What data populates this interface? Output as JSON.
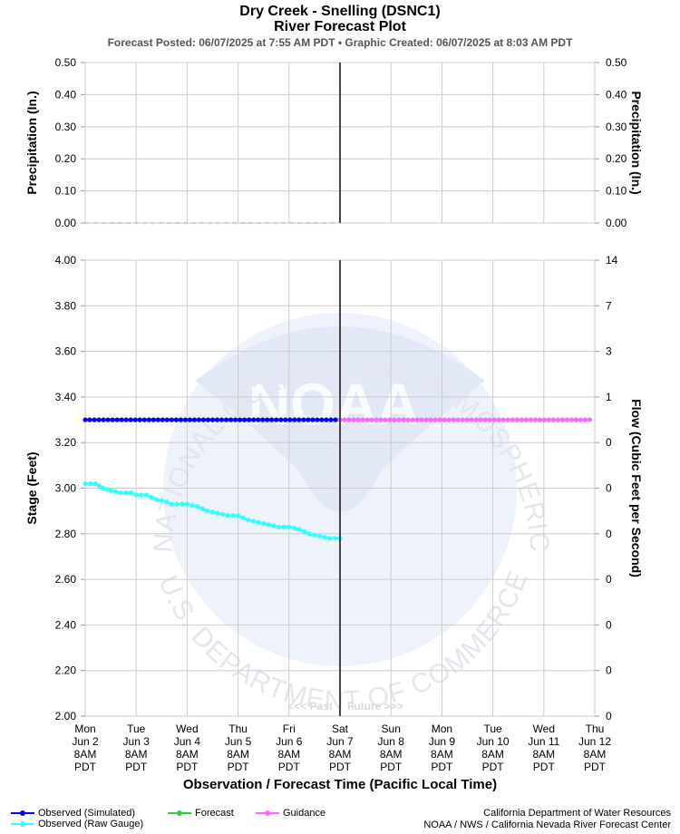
{
  "header": {
    "title_line1": "Dry Creek - Snelling (DSNC1)",
    "title_line2": "River Forecast Plot",
    "subtitle": "Forecast Posted: 06/07/2025 at 7:55 AM PDT  •  Graphic Created: 06/07/2025 at 8:03 AM PDT"
  },
  "chart_data": [
    {
      "type": "line",
      "ylabel_left": "Precipitation (In.)",
      "ylabel_right": "Precipitation (In.)",
      "ylim": [
        0,
        0.5
      ],
      "yticks_left": [
        "0.50",
        "0.40",
        "0.30",
        "0.20",
        "0.10",
        "0.00"
      ],
      "yticks_right": [
        "0.50",
        "0.40",
        "0.30",
        "0.20",
        "0.10",
        "0.00"
      ],
      "series": [
        {
          "values": [
            0,
            0
          ]
        }
      ],
      "grid": true
    },
    {
      "type": "line",
      "ylabel_left": "Stage (Feet)",
      "ylabel_right": "Flow (Cubic Feet per Second)",
      "ylim": [
        2.0,
        4.0
      ],
      "yticks_left": [
        "4.00",
        "3.80",
        "3.60",
        "3.40",
        "3.20",
        "3.00",
        "2.80",
        "2.60",
        "2.40",
        "2.20",
        "2.00"
      ],
      "yticks_right": [
        "14",
        "7",
        "3",
        "1",
        "0",
        "0",
        "0",
        "0",
        "0",
        "0",
        "0"
      ],
      "xlabel": "Observation / Forecast Time (Pacific Local Time)",
      "x_ticks": [
        [
          "Mon",
          "Jun 2",
          "8AM",
          "PDT"
        ],
        [
          "Tue",
          "Jun 3",
          "8AM",
          "PDT"
        ],
        [
          "Wed",
          "Jun 4",
          "8AM",
          "PDT"
        ],
        [
          "Thu",
          "Jun 5",
          "8AM",
          "PDT"
        ],
        [
          "Fri",
          "Jun 6",
          "8AM",
          "PDT"
        ],
        [
          "Sat",
          "Jun 7",
          "8AM",
          "PDT"
        ],
        [
          "Sun",
          "Jun 8",
          "8AM",
          "PDT"
        ],
        [
          "Mon",
          "Jun 9",
          "8AM",
          "PDT"
        ],
        [
          "Tue",
          "Jun 10",
          "8AM",
          "PDT"
        ],
        [
          "Wed",
          "Jun 11",
          "8AM",
          "PDT"
        ],
        [
          "Thu",
          "Jun 12",
          "8AM",
          "PDT"
        ]
      ],
      "xlim_days": [
        0,
        10
      ],
      "now_day": 5,
      "past_label": "<<< Past",
      "future_label": "Future >>>",
      "series": [
        {
          "name": "Observed (Simulated)",
          "color": "#0000ee",
          "points": [
            [
              0,
              3.3
            ],
            [
              5,
              3.3
            ]
          ]
        },
        {
          "name": "Guidance",
          "color": "#ff66ff",
          "points": [
            [
              5,
              3.3
            ],
            [
              9.9,
              3.3
            ]
          ]
        },
        {
          "name": "Observed (Raw Gauge)",
          "color": "#33ffff",
          "points": [
            [
              0,
              3.02
            ],
            [
              0.2,
              3.02
            ],
            [
              0.35,
              3.0
            ],
            [
              0.5,
              2.99
            ],
            [
              0.7,
              2.98
            ],
            [
              0.9,
              2.98
            ],
            [
              1.0,
              2.97
            ],
            [
              1.2,
              2.97
            ],
            [
              1.4,
              2.95
            ],
            [
              1.6,
              2.94
            ],
            [
              1.7,
              2.93
            ],
            [
              2.0,
              2.93
            ],
            [
              2.2,
              2.92
            ],
            [
              2.4,
              2.9
            ],
            [
              2.6,
              2.89
            ],
            [
              2.8,
              2.88
            ],
            [
              3.0,
              2.88
            ],
            [
              3.2,
              2.86
            ],
            [
              3.4,
              2.85
            ],
            [
              3.6,
              2.84
            ],
            [
              3.8,
              2.83
            ],
            [
              4.0,
              2.83
            ],
            [
              4.2,
              2.82
            ],
            [
              4.4,
              2.8
            ],
            [
              4.6,
              2.79
            ],
            [
              4.8,
              2.78
            ],
            [
              5.0,
              2.78
            ]
          ]
        }
      ],
      "grid": true
    }
  ],
  "legend": {
    "items": [
      {
        "name": "Observed (Simulated)",
        "color": "#0000ee"
      },
      {
        "name": "Forecast",
        "color": "#33cc33"
      },
      {
        "name": "Guidance",
        "color": "#ff66ff"
      },
      {
        "name": "Observed (Raw Gauge)",
        "color": "#33ffff"
      }
    ]
  },
  "credits": {
    "line1": "California Department of Water Resources",
    "line2": "NOAA / NWS / California Nevada River Forecast Center"
  },
  "watermark": {
    "arc_text": "NATIONAL OCEANIC AND ATMOSPHERIC ADMINISTRATION",
    "bottom_text": "U.S. DEPARTMENT OF COMMERCE",
    "logo_text": "NOAA"
  }
}
